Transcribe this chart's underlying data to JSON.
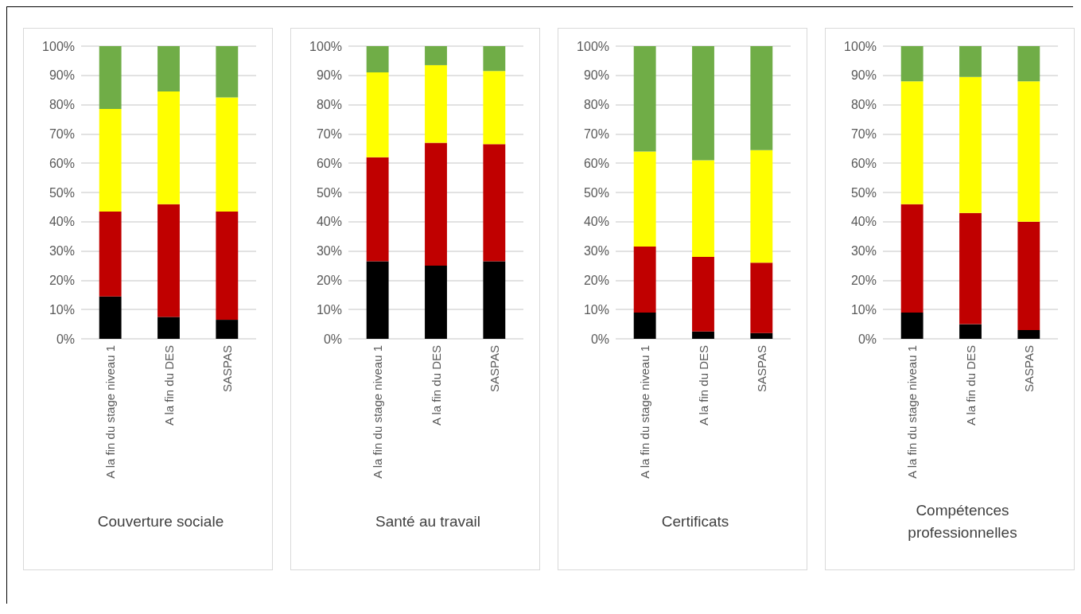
{
  "chart_data": [
    {
      "type": "bar",
      "stacked": true,
      "xlabel": "Couverture sociale",
      "categories": [
        "A la fin du stage niveau 1",
        "A la fin du DES",
        "SASPAS"
      ],
      "series": [
        {
          "color": "#000000",
          "values": [
            14.5,
            7.5,
            6.5
          ]
        },
        {
          "color": "#c00000",
          "values": [
            29,
            38.5,
            37
          ]
        },
        {
          "color": "#ffff00",
          "values": [
            35,
            38.5,
            39
          ]
        },
        {
          "color": "#70ad47",
          "values": [
            21.5,
            15.5,
            17.5
          ]
        }
      ],
      "ylim": [
        0,
        100
      ],
      "yticks": [
        {
          "value": 0,
          "label": "0%"
        },
        {
          "value": 10,
          "label": "10%"
        },
        {
          "value": 20,
          "label": "20%"
        },
        {
          "value": 30,
          "label": "30%"
        },
        {
          "value": 40,
          "label": "40%"
        },
        {
          "value": 50,
          "label": "50%"
        },
        {
          "value": 60,
          "label": "60%"
        },
        {
          "value": 70,
          "label": "70%"
        },
        {
          "value": 80,
          "label": "80%"
        },
        {
          "value": 90,
          "label": "90%"
        },
        {
          "value": 100,
          "label": "100%"
        }
      ],
      "grid": "y"
    },
    {
      "type": "bar",
      "stacked": true,
      "xlabel": "Santé  au travail",
      "categories": [
        "A la fin du stage niveau 1",
        "A la fin du DES",
        "SASPAS"
      ],
      "series": [
        {
          "color": "#000000",
          "values": [
            26.5,
            25,
            26.5
          ]
        },
        {
          "color": "#c00000",
          "values": [
            35.5,
            42,
            40
          ]
        },
        {
          "color": "#ffff00",
          "values": [
            29,
            26.5,
            25
          ]
        },
        {
          "color": "#70ad47",
          "values": [
            9,
            6.5,
            8.5
          ]
        }
      ],
      "ylim": [
        0,
        100
      ],
      "yticks": [
        {
          "value": 0,
          "label": "0%"
        },
        {
          "value": 10,
          "label": "10%"
        },
        {
          "value": 20,
          "label": "20%"
        },
        {
          "value": 30,
          "label": "30%"
        },
        {
          "value": 40,
          "label": "40%"
        },
        {
          "value": 50,
          "label": "50%"
        },
        {
          "value": 60,
          "label": "60%"
        },
        {
          "value": 70,
          "label": "70%"
        },
        {
          "value": 80,
          "label": "80%"
        },
        {
          "value": 90,
          "label": "90%"
        },
        {
          "value": 100,
          "label": "100%"
        }
      ],
      "grid": "y"
    },
    {
      "type": "bar",
      "stacked": true,
      "xlabel": "Certificats",
      "categories": [
        "A la fin du stage niveau 1",
        "A la fin du DES",
        "SASPAS"
      ],
      "series": [
        {
          "color": "#000000",
          "values": [
            9,
            2.5,
            2
          ]
        },
        {
          "color": "#c00000",
          "values": [
            22.5,
            25.5,
            24
          ]
        },
        {
          "color": "#ffff00",
          "values": [
            32.5,
            33,
            38.5
          ]
        },
        {
          "color": "#70ad47",
          "values": [
            36,
            39,
            35.5
          ]
        }
      ],
      "ylim": [
        0,
        100
      ],
      "yticks": [
        {
          "value": 0,
          "label": "0%"
        },
        {
          "value": 10,
          "label": "10%"
        },
        {
          "value": 20,
          "label": "20%"
        },
        {
          "value": 30,
          "label": "30%"
        },
        {
          "value": 40,
          "label": "40%"
        },
        {
          "value": 50,
          "label": "50%"
        },
        {
          "value": 60,
          "label": "60%"
        },
        {
          "value": 70,
          "label": "70%"
        },
        {
          "value": 80,
          "label": "80%"
        },
        {
          "value": 90,
          "label": "90%"
        },
        {
          "value": 100,
          "label": "100%"
        }
      ],
      "grid": "y"
    },
    {
      "type": "bar",
      "stacked": true,
      "xlabel": "Compétences professionnelles",
      "categories": [
        "A la fin du stage niveau 1",
        "A la fin du DES",
        "SASPAS"
      ],
      "series": [
        {
          "color": "#000000",
          "values": [
            9,
            5,
            3
          ]
        },
        {
          "color": "#c00000",
          "values": [
            37,
            38,
            37
          ]
        },
        {
          "color": "#ffff00",
          "values": [
            42,
            46.5,
            48
          ]
        },
        {
          "color": "#70ad47",
          "values": [
            12,
            10.5,
            12
          ]
        }
      ],
      "ylim": [
        0,
        100
      ],
      "yticks": [
        {
          "value": 0,
          "label": "0%"
        },
        {
          "value": 10,
          "label": "10%"
        },
        {
          "value": 20,
          "label": "20%"
        },
        {
          "value": 30,
          "label": "30%"
        },
        {
          "value": 40,
          "label": "40%"
        },
        {
          "value": 50,
          "label": "50%"
        },
        {
          "value": 60,
          "label": "60%"
        },
        {
          "value": 70,
          "label": "70%"
        },
        {
          "value": 80,
          "label": "80%"
        },
        {
          "value": 90,
          "label": "90%"
        },
        {
          "value": 100,
          "label": "100%"
        }
      ],
      "grid": "y"
    }
  ]
}
